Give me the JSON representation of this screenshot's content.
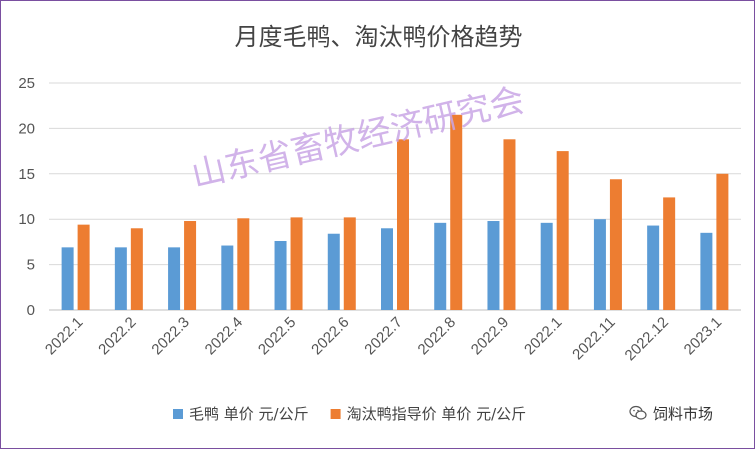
{
  "chart_data": {
    "type": "bar",
    "title": "月度毛鸭、淘汰鸭价格趋势",
    "categories": [
      "2022.1",
      "2022.2",
      "2022.3",
      "2022.4",
      "2022.5",
      "2022.6",
      "2022.7",
      "2022.8",
      "2022.9",
      "2022.1",
      "2022.11",
      "2022.12",
      "2023.1"
    ],
    "series": [
      {
        "name": "毛鸭 单价 元/公斤",
        "color": "#5b9bd5",
        "values": [
          6.9,
          6.9,
          6.9,
          7.1,
          7.6,
          8.4,
          9.0,
          9.6,
          9.8,
          9.6,
          10.0,
          9.3,
          8.5
        ]
      },
      {
        "name": "淘汰鸭指导价 单价 元/公斤",
        "color": "#ed7d31",
        "values": [
          9.4,
          9.0,
          9.8,
          10.1,
          10.2,
          10.2,
          18.8,
          21.5,
          18.8,
          17.5,
          14.4,
          12.4,
          15.0
        ]
      }
    ],
    "yticks": [
      "0",
      "5",
      "10",
      "15",
      "20",
      "25"
    ],
    "ylim": [
      0,
      25
    ],
    "grid": true,
    "legend_position": "bottom"
  },
  "watermark": "山东省畜牧经济研究会",
  "brand": {
    "icon": "wechat-icon",
    "label": "饲料市场"
  }
}
